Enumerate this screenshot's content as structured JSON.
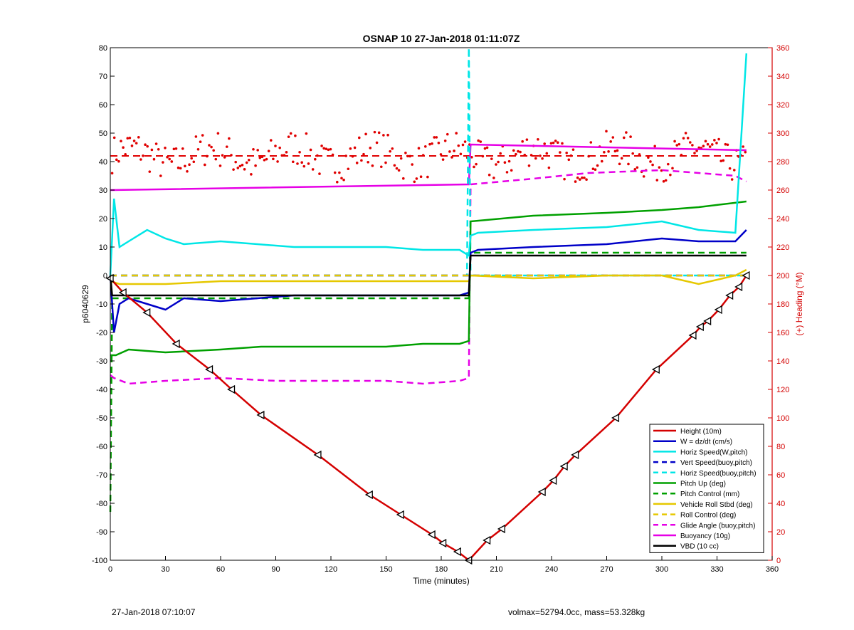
{
  "chart_data": {
    "type": "line",
    "title": "OSNAP 10 27-Jan-2018 01:11:07Z",
    "xlabel": "Time (minutes)",
    "ylabel_left": "p6040629",
    "ylabel_right": "(+) Heading (°M)",
    "xlim": [
      0,
      360
    ],
    "ylim_left": [
      -100,
      80
    ],
    "ylim_right": [
      0,
      360
    ],
    "x_ticks": [
      "0",
      "30",
      "60",
      "90",
      "120",
      "150",
      "180",
      "210",
      "240",
      "270",
      "300",
      "330",
      "360"
    ],
    "y_ticks_left": [
      "80",
      "70",
      "60",
      "50",
      "40",
      "30",
      "20",
      "10",
      "0",
      "-10",
      "-20",
      "-30",
      "-40",
      "-50",
      "-60",
      "-70",
      "-80",
      "-90",
      "-100"
    ],
    "y_ticks_right": [
      "360",
      "340",
      "320",
      "300",
      "280",
      "260",
      "240",
      "220",
      "200",
      "180",
      "160",
      "140",
      "120",
      "100",
      "80",
      "60",
      "40",
      "20",
      "0"
    ],
    "grid": false,
    "legend_position": "bottom-right",
    "colors": {
      "height": "#d40000",
      "w": "#0000c8",
      "horiz_speed": "#00e6e6",
      "pitch": "#00a000",
      "roll": "#e6c800",
      "glide": "#e600e6",
      "buoyancy": "#e600e6",
      "vbd": "#000000",
      "heading": "#e00000",
      "right_axis": "#d40000"
    },
    "series": [
      {
        "name": "Height (10m)",
        "style": "solid",
        "color": "#d40000",
        "x": [
          0,
          7,
          20,
          36,
          54,
          66,
          82,
          113,
          141,
          158,
          175,
          181,
          189,
          195,
          205,
          213,
          235,
          241,
          247,
          253,
          275,
          297,
          317,
          321,
          325,
          331,
          337,
          342,
          346
        ],
        "y": [
          -1,
          -6,
          -13,
          -24,
          -33,
          -40,
          -49,
          -63,
          -77,
          -84,
          -91,
          -94,
          -97,
          -100,
          -93,
          -89,
          -76,
          -72,
          -67,
          -63,
          -50,
          -33,
          -21,
          -18,
          -16,
          -12,
          -7,
          -4,
          0
        ]
      },
      {
        "name": "W = dz/dt (cm/s)",
        "style": "solid",
        "color": "#0000c8",
        "x": [
          0,
          2,
          5,
          10,
          20,
          30,
          40,
          60,
          80,
          100,
          130,
          150,
          170,
          190,
          195,
          196,
          200,
          230,
          270,
          300,
          320,
          340,
          346
        ],
        "y": [
          0,
          -20,
          -10,
          -8,
          -10,
          -12,
          -8,
          -9,
          -8,
          -7,
          -7,
          -7,
          -7,
          -7,
          -6,
          8,
          9,
          10,
          11,
          13,
          12,
          12,
          16
        ]
      },
      {
        "name": "Horiz Speed(W,pitch)",
        "style": "solid",
        "color": "#00e6e6",
        "x": [
          0,
          2,
          5,
          10,
          20,
          30,
          40,
          60,
          80,
          100,
          130,
          150,
          170,
          190,
          195,
          196,
          200,
          230,
          270,
          300,
          320,
          340,
          346
        ],
        "y": [
          0,
          27,
          10,
          12,
          16,
          13,
          11,
          12,
          11,
          10,
          10,
          10,
          9,
          9,
          7,
          14,
          15,
          16,
          17,
          19,
          16,
          15,
          78
        ]
      },
      {
        "name": "Vert Speed(buoy,pitch)",
        "style": "dashed",
        "color": "#0000c8",
        "x": [
          0,
          195,
          196,
          346
        ],
        "y": [
          0,
          0,
          0,
          0
        ]
      },
      {
        "name": "Horiz Speed(buoy,pitch)",
        "style": "dashed",
        "color": "#00e6e6",
        "x": [
          0,
          194,
          195,
          196,
          346
        ],
        "y": [
          0,
          0,
          80,
          0,
          0
        ]
      },
      {
        "name": "Pitch Up (deg)",
        "style": "solid",
        "color": "#00a000",
        "x": [
          0,
          3,
          10,
          30,
          60,
          82,
          120,
          150,
          170,
          190,
          195,
          196,
          230,
          270,
          300,
          320,
          346
        ],
        "y": [
          -28,
          -28,
          -26,
          -27,
          -26,
          -25,
          -25,
          -25,
          -24,
          -24,
          -23,
          19,
          21,
          22,
          23,
          24,
          26
        ]
      },
      {
        "name": "Pitch Control (mm)",
        "style": "dashed",
        "color": "#00a000",
        "x": [
          0,
          1,
          5,
          195,
          196,
          346
        ],
        "y": [
          -83,
          -8,
          -8,
          -8,
          8,
          8
        ]
      },
      {
        "name": "Vehicle Roll Stbd (deg)",
        "style": "solid",
        "color": "#e6c800",
        "x": [
          0,
          5,
          30,
          60,
          100,
          140,
          170,
          190,
          195,
          196,
          230,
          270,
          300,
          320,
          340,
          346
        ],
        "y": [
          -2,
          -3,
          -3,
          -2,
          -2,
          -2,
          -2,
          -2,
          -2,
          0,
          -1,
          0,
          0,
          -3,
          0,
          2
        ]
      },
      {
        "name": "Roll Control (deg)",
        "style": "dashed",
        "color": "#e6c800",
        "x": [
          0,
          346
        ],
        "y": [
          0,
          0
        ]
      },
      {
        "name": "Glide Angle (buoy,pitch)",
        "style": "dashed",
        "color": "#e600e6",
        "x": [
          0,
          2,
          10,
          30,
          60,
          90,
          120,
          150,
          170,
          190,
          195,
          196,
          230,
          260,
          300,
          320,
          340,
          346
        ],
        "y": [
          -35,
          -36,
          -38,
          -37,
          -36,
          -37,
          -37,
          -37,
          -38,
          -37,
          -36,
          32,
          34,
          36,
          37,
          36,
          35,
          33
        ]
      },
      {
        "name": "Buoyancy (10g)",
        "style": "solid",
        "color": "#e600e6",
        "x": [
          0,
          1,
          195,
          196,
          346
        ],
        "y": [
          30,
          30,
          32,
          46,
          44
        ]
      },
      {
        "name": "VBD (10 cc)",
        "style": "solid",
        "color": "#000000",
        "x": [
          0,
          1,
          2,
          195,
          196,
          346
        ],
        "y": [
          0,
          -7,
          -7,
          -7,
          7,
          7
        ]
      }
    ],
    "heading_mean_deg": 284,
    "annotations": {
      "footer_left": "27-Jan-2018 07:10:07",
      "footer_right": "volmax=52794.0cc, mass=53.328kg"
    }
  }
}
